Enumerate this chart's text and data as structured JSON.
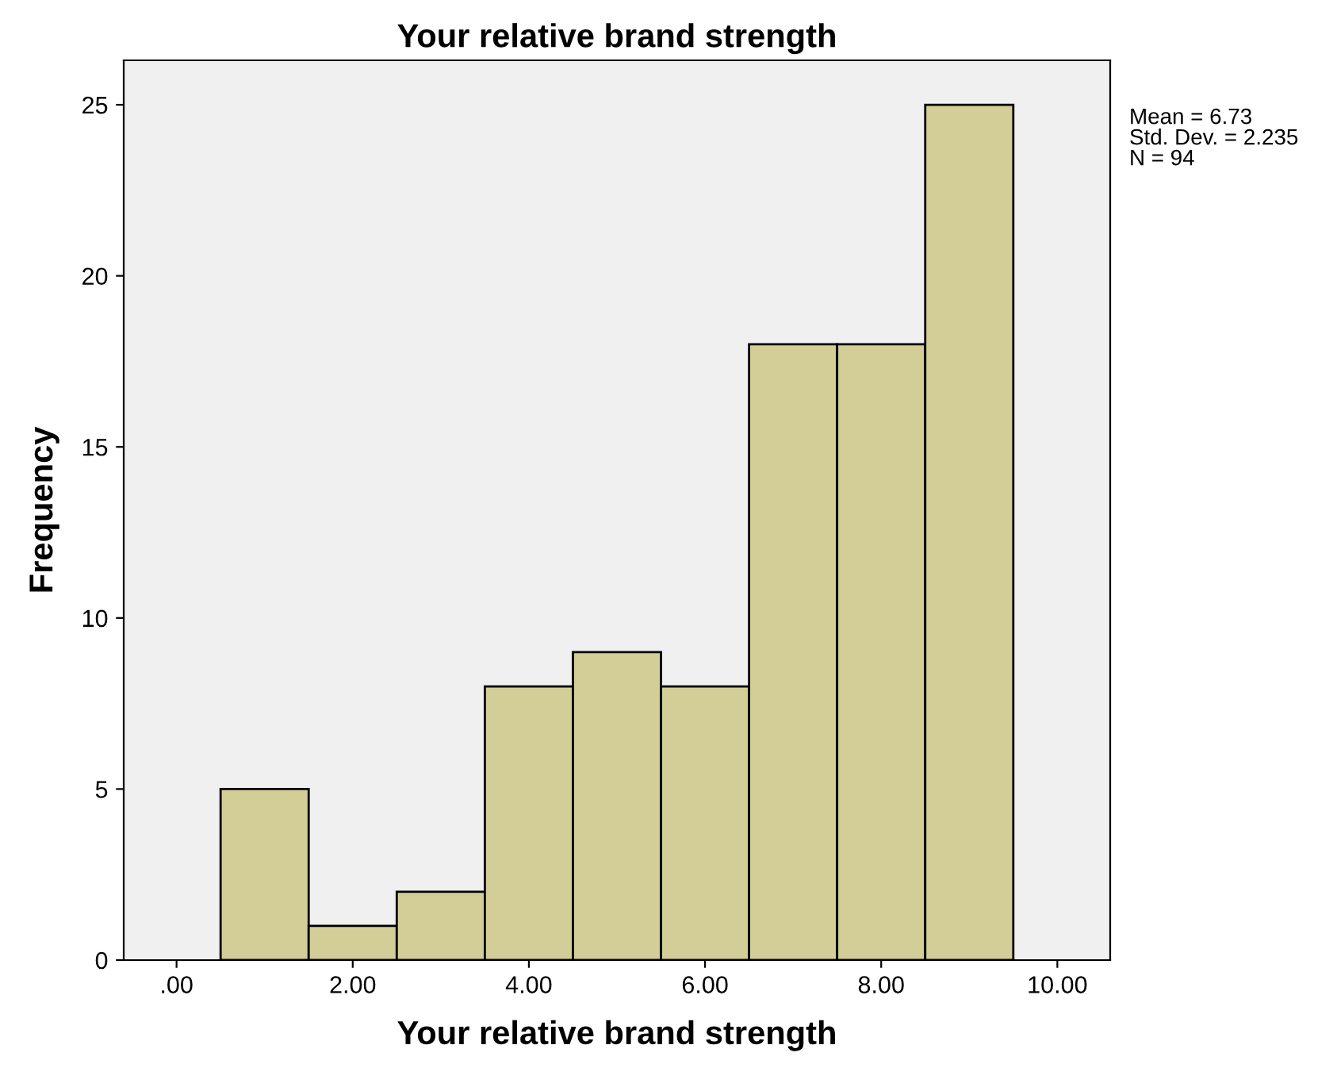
{
  "chart_data": {
    "type": "histogram",
    "title": "Your relative brand strength",
    "xlabel": "Your relative brand strength",
    "ylabel": "Frequency",
    "bins": [
      0.5,
      1.5,
      2.5,
      3.5,
      4.5,
      5.5,
      6.5,
      7.5,
      8.5,
      9.5
    ],
    "values": [
      5,
      1,
      2,
      8,
      9,
      8,
      18,
      18,
      25
    ],
    "color": "#d3ce97",
    "xlim": [
      -0.6,
      10.6
    ],
    "ylim": [
      0,
      26.3
    ],
    "xticks": [
      {
        "value": 0,
        "label": ".00"
      },
      {
        "value": 2,
        "label": "2.00"
      },
      {
        "value": 4,
        "label": "4.00"
      },
      {
        "value": 6,
        "label": "6.00"
      },
      {
        "value": 8,
        "label": "8.00"
      },
      {
        "value": 10,
        "label": "10.00"
      }
    ],
    "yticks": [
      0,
      5,
      10,
      15,
      20,
      25
    ],
    "grid": false,
    "annotations": [
      "Mean = 6.73",
      "Std. Dev. = 2.235",
      "N = 94"
    ]
  }
}
